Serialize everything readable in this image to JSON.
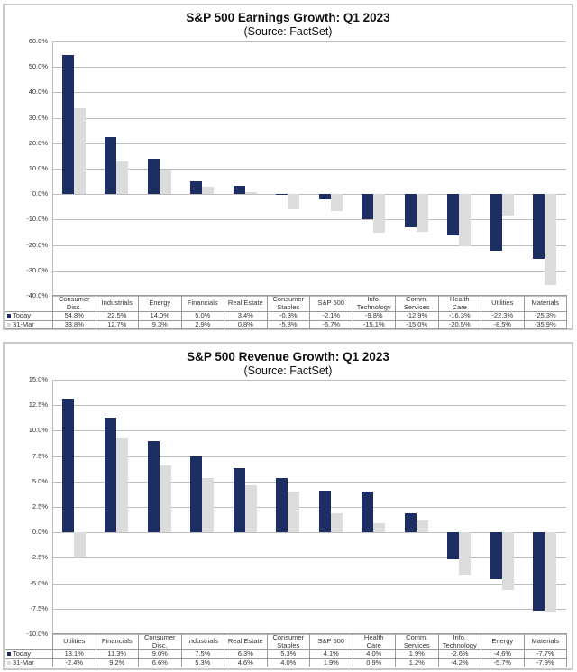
{
  "colors": {
    "today": "#1c2e63",
    "mar31": "#dcdcdc",
    "grid": "#bdbdbd"
  },
  "legend": {
    "today": "Today",
    "mar31": "31-Mar"
  },
  "chart_data": [
    {
      "type": "bar",
      "title": "S&P 500 Earnings Growth: Q1 2023",
      "subtitle": "(Source: FactSet)",
      "xlabel": "",
      "ylabel": "",
      "ylim": [
        -40,
        60
      ],
      "yticks": [
        "60.0%",
        "50.0%",
        "40.0%",
        "30.0%",
        "20.0%",
        "10.0%",
        "0.0%",
        "-10.0%",
        "-20.0%",
        "-30.0%",
        "-40.0%"
      ],
      "grid": true,
      "legend_position": "data-table",
      "categories": [
        "Consumer Disc.",
        "Industrials",
        "Energy",
        "Financials",
        "Real Estate",
        "Consumer Staples",
        "S&P 500",
        "Info. Technology",
        "Comm. Services",
        "Health Care",
        "Utilities",
        "Materials"
      ],
      "series": [
        {
          "name": "Today",
          "values": [
            54.8,
            22.5,
            14.0,
            5.0,
            3.4,
            -0.3,
            -2.1,
            -9.8,
            -12.9,
            -16.3,
            -22.3,
            -25.3
          ],
          "labels": [
            "54.8%",
            "22.5%",
            "14.0%",
            "5.0%",
            "3.4%",
            "-0.3%",
            "-2.1%",
            "-9.8%",
            "-12.9%",
            "-16.3%",
            "-22.3%",
            "-25.3%"
          ]
        },
        {
          "name": "31-Mar",
          "values": [
            33.8,
            12.7,
            9.3,
            2.9,
            0.8,
            -5.8,
            -6.7,
            -15.1,
            -15.0,
            -20.5,
            -8.5,
            -35.9
          ],
          "labels": [
            "33.8%",
            "12.7%",
            "9.3%",
            "2.9%",
            "0.8%",
            "-5.8%",
            "-6.7%",
            "-15.1%",
            "-15.0%",
            "-20.5%",
            "-8.5%",
            "-35.9%"
          ]
        }
      ]
    },
    {
      "type": "bar",
      "title": "S&P 500 Revenue Growth: Q1 2023",
      "subtitle": "(Source: FactSet)",
      "xlabel": "",
      "ylabel": "",
      "ylim": [
        -10,
        15
      ],
      "yticks": [
        "15.0%",
        "12.5%",
        "10.0%",
        "7.5%",
        "5.0%",
        "2.5%",
        "0.0%",
        "-2.5%",
        "-5.0%",
        "-7.5%",
        "-10.0%"
      ],
      "grid": true,
      "legend_position": "data-table",
      "categories": [
        "Utilities",
        "Financials",
        "Consumer Disc.",
        "Industrials",
        "Real Estate",
        "Consumer Staples",
        "S&P 500",
        "Health Care",
        "Comm. Services",
        "Info. Technology",
        "Energy",
        "Materials"
      ],
      "series": [
        {
          "name": "Today",
          "values": [
            13.1,
            11.3,
            9.0,
            7.5,
            6.3,
            5.3,
            4.1,
            4.0,
            1.9,
            -2.6,
            -4.6,
            -7.7
          ],
          "labels": [
            "13.1%",
            "11.3%",
            "9.0%",
            "7.5%",
            "6.3%",
            "5.3%",
            "4.1%",
            "4.0%",
            "1.9%",
            "-2.6%",
            "-4.6%",
            "-7.7%"
          ]
        },
        {
          "name": "31-Mar",
          "values": [
            -2.4,
            9.2,
            6.6,
            5.3,
            4.6,
            4.0,
            1.9,
            0.9,
            1.2,
            -4.2,
            -5.7,
            -7.9
          ],
          "labels": [
            "-2.4%",
            "9.2%",
            "6.6%",
            "5.3%",
            "4.6%",
            "4.0%",
            "1.9%",
            "0.9%",
            "1.2%",
            "-4.2%",
            "-5.7%",
            "-7.9%"
          ]
        }
      ]
    }
  ],
  "category_lines": {
    "earnings": [
      [
        "Consumer",
        "Disc."
      ],
      [
        "Industrials"
      ],
      [
        "Energy"
      ],
      [
        "Financials"
      ],
      [
        "Real Estate"
      ],
      [
        "Consumer",
        "Staples"
      ],
      [
        "S&P 500"
      ],
      [
        "Info.",
        "Technology"
      ],
      [
        "Comm.",
        "Services"
      ],
      [
        "Health",
        "Care"
      ],
      [
        "Utilities"
      ],
      [
        "Materials"
      ]
    ],
    "revenue": [
      [
        "Utilities"
      ],
      [
        "Financials"
      ],
      [
        "Consumer",
        "Disc."
      ],
      [
        "Industrials"
      ],
      [
        "Real Estate"
      ],
      [
        "Consumer",
        "Staples"
      ],
      [
        "S&P 500"
      ],
      [
        "Health",
        "Care"
      ],
      [
        "Comm.",
        "Services"
      ],
      [
        "Info.",
        "Technology"
      ],
      [
        "Energy"
      ],
      [
        "Materials"
      ]
    ]
  }
}
